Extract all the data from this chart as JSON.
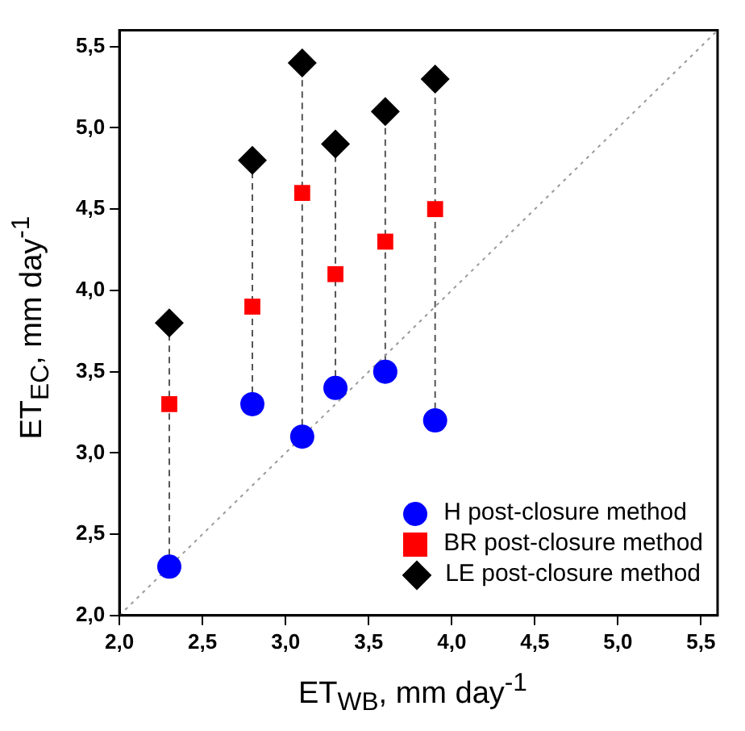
{
  "chart_data": {
    "type": "scatter",
    "xlabel": "ET$_{WB}$, mm day$^{-1}$",
    "ylabel": "ET$_{EC}$, mm day$^{-1}$",
    "xlim": [
      2.0,
      5.6
    ],
    "ylim": [
      2.0,
      5.6
    ],
    "xticks": [
      {
        "value": 2.0,
        "label": "2,0"
      },
      {
        "value": 2.5,
        "label": "2,5"
      },
      {
        "value": 3.0,
        "label": "3,0"
      },
      {
        "value": 3.5,
        "label": "3,5"
      },
      {
        "value": 4.0,
        "label": "4,0"
      },
      {
        "value": 4.5,
        "label": "4,5"
      },
      {
        "value": 5.0,
        "label": "5,0"
      },
      {
        "value": 5.5,
        "label": "5,5"
      }
    ],
    "yticks": [
      {
        "value": 2.0,
        "label": "2,0"
      },
      {
        "value": 2.5,
        "label": "2,5"
      },
      {
        "value": 3.0,
        "label": "3,0"
      },
      {
        "value": 3.5,
        "label": "3,5"
      },
      {
        "value": 4.0,
        "label": "4,0"
      },
      {
        "value": 4.5,
        "label": "4,5"
      },
      {
        "value": 5.0,
        "label": "5,0"
      },
      {
        "value": 5.5,
        "label": "5,5"
      }
    ],
    "grid": false,
    "legend": "bottom right",
    "series": [
      {
        "type": "line",
        "color": "#999999",
        "line_style": "dotted",
        "marker": "none",
        "x": [
          2.0,
          5.6
        ],
        "values": [
          2.0,
          5.6
        ]
      },
      {
        "type": "line",
        "color": "#555555",
        "line_style": "dashed",
        "marker": "none",
        "x": [
          2.3,
          2.3
        ],
        "values": [
          2.3,
          3.8
        ]
      },
      {
        "type": "line",
        "color": "#555555",
        "line_style": "dashed",
        "marker": "none",
        "x": [
          2.8,
          2.8
        ],
        "values": [
          3.3,
          4.8
        ]
      },
      {
        "type": "line",
        "color": "#555555",
        "line_style": "dashed",
        "marker": "none",
        "x": [
          3.1,
          3.1
        ],
        "values": [
          3.1,
          5.4
        ]
      },
      {
        "type": "line",
        "color": "#555555",
        "line_style": "dashed",
        "marker": "none",
        "x": [
          3.3,
          3.3
        ],
        "values": [
          3.4,
          4.9
        ]
      },
      {
        "type": "line",
        "color": "#555555",
        "line_style": "dashed",
        "marker": "none",
        "x": [
          3.6,
          3.6
        ],
        "values": [
          3.5,
          5.1
        ]
      },
      {
        "type": "line",
        "color": "#555555",
        "line_style": "dashed",
        "marker": "none",
        "x": [
          3.9,
          3.9
        ],
        "values": [
          3.2,
          5.3
        ]
      },
      {
        "name": "H post-closure method",
        "type": "scatter",
        "color": "#0000ff",
        "marker": "circle",
        "x": [
          2.3,
          2.8,
          3.1,
          3.3,
          3.6,
          3.9
        ],
        "values": [
          2.3,
          3.3,
          3.1,
          3.4,
          3.5,
          3.2
        ]
      },
      {
        "name": "BR post-closure method",
        "type": "scatter",
        "color": "#ff0000",
        "marker": "square",
        "x": [
          2.3,
          2.8,
          3.1,
          3.3,
          3.6,
          3.9
        ],
        "values": [
          3.3,
          3.9,
          4.6,
          4.1,
          4.3,
          4.5
        ]
      },
      {
        "name": "LE post-closure method",
        "type": "scatter",
        "color": "#000000",
        "marker": "diamond",
        "x": [
          2.3,
          2.8,
          3.1,
          3.3,
          3.6,
          3.9
        ],
        "values": [
          3.8,
          4.8,
          5.4,
          4.9,
          5.1,
          5.3
        ]
      }
    ]
  }
}
